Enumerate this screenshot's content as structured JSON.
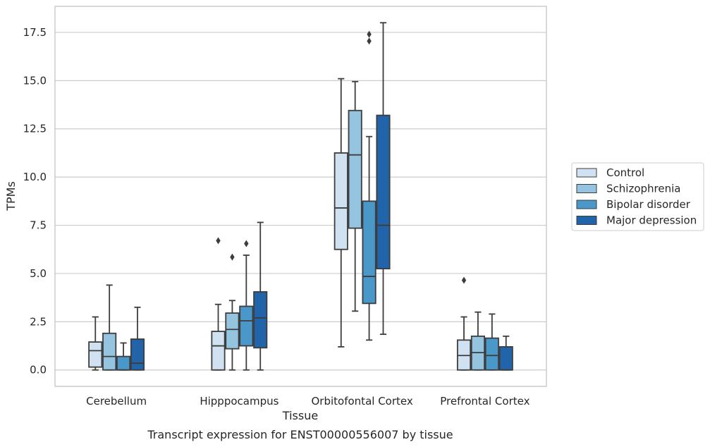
{
  "chart_data": {
    "type": "box",
    "title": "Transcript expression for ENST00000556007 by tissue",
    "xlabel": "Tissue",
    "ylabel": "TPMs",
    "ylim": [
      -0.85,
      18.85
    ],
    "yticks": [
      "0.0",
      "2.5",
      "5.0",
      "7.5",
      "10.0",
      "12.5",
      "15.0",
      "17.5"
    ],
    "grid": "horizontal",
    "legend_position": "right",
    "categories": [
      "Cerebellum",
      "Hipppocampus",
      "Orbitofontal Cortex",
      "Prefrontal Cortex"
    ],
    "series": [
      {
        "name": "Control",
        "color": "#d0e1f2",
        "boxes": [
          {
            "whislo": 0.0,
            "q1": 0.15,
            "med": 1.0,
            "q3": 1.45,
            "whishi": 2.75,
            "fliers": []
          },
          {
            "whislo": 0.0,
            "q1": 0.0,
            "med": 1.25,
            "q3": 2.0,
            "whishi": 3.4,
            "fliers": [
              6.7
            ]
          },
          {
            "whislo": 1.2,
            "q1": 6.25,
            "med": 8.4,
            "q3": 11.25,
            "whishi": 15.1,
            "fliers": []
          },
          {
            "whislo": 0.0,
            "q1": 0.0,
            "med": 0.75,
            "q3": 1.55,
            "whishi": 2.75,
            "fliers": [
              4.65
            ]
          }
        ]
      },
      {
        "name": "Schizophrenia",
        "color": "#94c4df",
        "boxes": [
          {
            "whislo": 0.0,
            "q1": 0.0,
            "med": 0.7,
            "q3": 1.9,
            "whishi": 4.4,
            "fliers": []
          },
          {
            "whislo": 0.0,
            "q1": 1.1,
            "med": 2.1,
            "q3": 2.95,
            "whishi": 3.6,
            "fliers": [
              5.85
            ]
          },
          {
            "whislo": 3.05,
            "q1": 7.35,
            "med": 11.15,
            "q3": 13.45,
            "whishi": 14.95,
            "fliers": []
          },
          {
            "whislo": 0.0,
            "q1": 0.0,
            "med": 0.9,
            "q3": 1.75,
            "whishi": 3.0,
            "fliers": []
          }
        ]
      },
      {
        "name": "Bipolar disorder",
        "color": "#4a98c9",
        "boxes": [
          {
            "whislo": 0.0,
            "q1": 0.0,
            "med": 0.0,
            "q3": 0.7,
            "whishi": 1.4,
            "fliers": []
          },
          {
            "whislo": 0.0,
            "q1": 1.25,
            "med": 2.55,
            "q3": 3.3,
            "whishi": 5.95,
            "fliers": [
              6.55
            ]
          },
          {
            "whislo": 1.55,
            "q1": 3.45,
            "med": 4.85,
            "q3": 8.75,
            "whishi": 12.1,
            "fliers": [
              17.05,
              17.4
            ]
          },
          {
            "whislo": 0.0,
            "q1": 0.0,
            "med": 0.75,
            "q3": 1.65,
            "whishi": 2.9,
            "fliers": []
          }
        ]
      },
      {
        "name": "Major depression",
        "color": "#2264a9",
        "boxes": [
          {
            "whislo": 0.0,
            "q1": 0.0,
            "med": 0.35,
            "q3": 1.6,
            "whishi": 3.25,
            "fliers": []
          },
          {
            "whislo": 0.0,
            "q1": 1.15,
            "med": 2.7,
            "q3": 4.05,
            "whishi": 7.65,
            "fliers": []
          },
          {
            "whislo": 1.85,
            "q1": 5.25,
            "med": 7.5,
            "q3": 13.2,
            "whishi": 18.0,
            "fliers": []
          },
          {
            "whislo": 0.0,
            "q1": 0.0,
            "med": 0.0,
            "q3": 1.2,
            "whishi": 1.75,
            "fliers": []
          }
        ]
      }
    ]
  }
}
